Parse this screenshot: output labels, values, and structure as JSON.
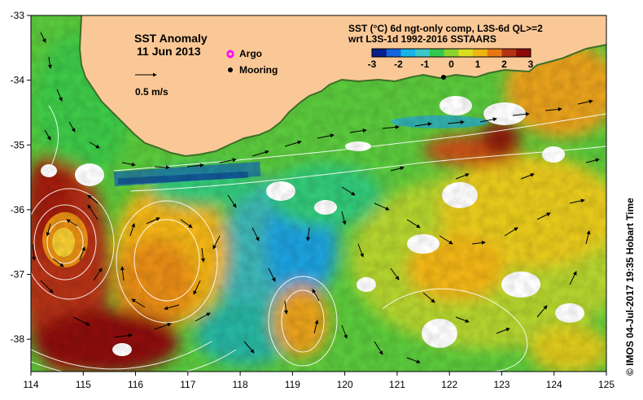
{
  "map": {
    "title": "SST Anomaly",
    "date": "11 Jun 2013",
    "scale_arrow_label": "0.5 m/s",
    "legend": {
      "argo_label": "Argo",
      "mooring_label": "Mooring",
      "argo_color": "#ff00ff",
      "mooring_color": "#000000"
    },
    "colorbar": {
      "title_line1": "SST (°C) 6d ngt-only comp, L3S-6d QL>=2",
      "title_line2": "wrt L3S-1d 1992-2016 SSTAARS",
      "ticks": [
        "-3",
        "-2",
        "-1",
        "0",
        "1",
        "2",
        "3"
      ],
      "colors": [
        "#0a1e8c",
        "#1464dc",
        "#19b4e6",
        "#3cc8c8",
        "#32c850",
        "#8cd22d",
        "#dcdc1e",
        "#f0b414",
        "#e67814",
        "#b43214",
        "#8c0a0a"
      ]
    },
    "axes": {
      "x_ticks": [
        "114",
        "115",
        "116",
        "117",
        "118",
        "119",
        "120",
        "121",
        "122",
        "123",
        "124",
        "125"
      ],
      "y_ticks": [
        "-33",
        "-34",
        "-35",
        "-36",
        "-37",
        "-38"
      ],
      "x_range": [
        114,
        125
      ],
      "y_range": [
        -38.5,
        -33
      ]
    },
    "credit": "© IMOS 04-Jul-2017 19:35 Hobart Time",
    "land_color": "#fac896"
  }
}
